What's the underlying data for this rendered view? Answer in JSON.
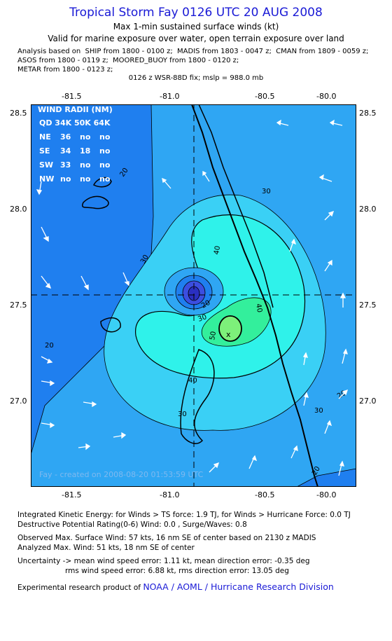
{
  "header": {
    "title": "Tropical Storm Fay 0126 UTC 20 AUG 2008",
    "subtitle1": "Max 1-min sustained surface winds (kt)",
    "subtitle2": "Valid for marine exposure over water, open terrain exposure over land",
    "analysis_lines": [
      "Analysis based on  SHIP from 1800 - 0100 z;  MADIS from 1803 - 0047 z;  CMAN from 1809 - 0059 z;",
      "ASOS from 1800 - 0119 z;  MOORED_BUOY from 1800 - 0120 z;",
      "METAR from 1800 - 0123 z;"
    ],
    "fix_line": "0126 z WSR-88D fix; mslp = 988.0 mb"
  },
  "axes": {
    "lon_ticks": [
      "-81.5",
      "-81.0",
      "-80.5",
      "-80.0"
    ],
    "lat_ticks": [
      "28.5",
      "28.0",
      "27.5",
      "27.0"
    ]
  },
  "wind_radii": {
    "title": "WIND RADII (NM)",
    "header_row": "QD 34K 50K 64K",
    "rows": [
      {
        "label": "NE",
        "v34": "36",
        "v50": "no",
        "v64": "no"
      },
      {
        "label": "SE",
        "v34": "34",
        "v50": "18",
        "v64": "no"
      },
      {
        "label": "SW",
        "v34": "33",
        "v50": "no",
        "v64": "no"
      },
      {
        "label": "NW",
        "v34": "no",
        "v50": "no",
        "v64": "no"
      }
    ]
  },
  "map": {
    "contour_labels": [
      "20",
      "20",
      "30",
      "30",
      "30",
      "40",
      "40",
      "20",
      "30",
      "50",
      "20",
      "30",
      "20",
      "40"
    ],
    "max_marker": "x",
    "credit": "Fay - created on 2008-08-20 01:53:59 UTC",
    "colors": {
      "outer": "#1f7fef",
      "c20": "#2fa6f3",
      "c30": "#3ad0f5",
      "c40": "#2ff2ea",
      "c50": "#33ef9c",
      "core": "#3c4ee0"
    }
  },
  "footer": {
    "ike": "Integrated Kinetic Energy:  for Winds > TS force: 1.9 TJ,  for Winds > Hurricane Force: 0.0 TJ",
    "dpr": "Destructive Potential Rating(0-6)   Wind: 0.0 , Surge/Waves: 0.8",
    "observed": "Observed Max. Surface Wind: 57 kts, 16 nm SE of center based on 2130 z MADIS",
    "analyzed": "Analyzed Max. Wind: 51 kts, 18 nm SE of center",
    "uncertainty1": "Uncertainty -> mean wind speed error: 1.11 kt,   mean direction error:  -0.35 deg",
    "uncertainty2": "rms wind speed error: 6.88 kt,   rms direction error: 13.05 deg",
    "product_prefix": "Experimental research product of",
    "product_link": "NOAA / AOML / Hurricane Research Division"
  }
}
